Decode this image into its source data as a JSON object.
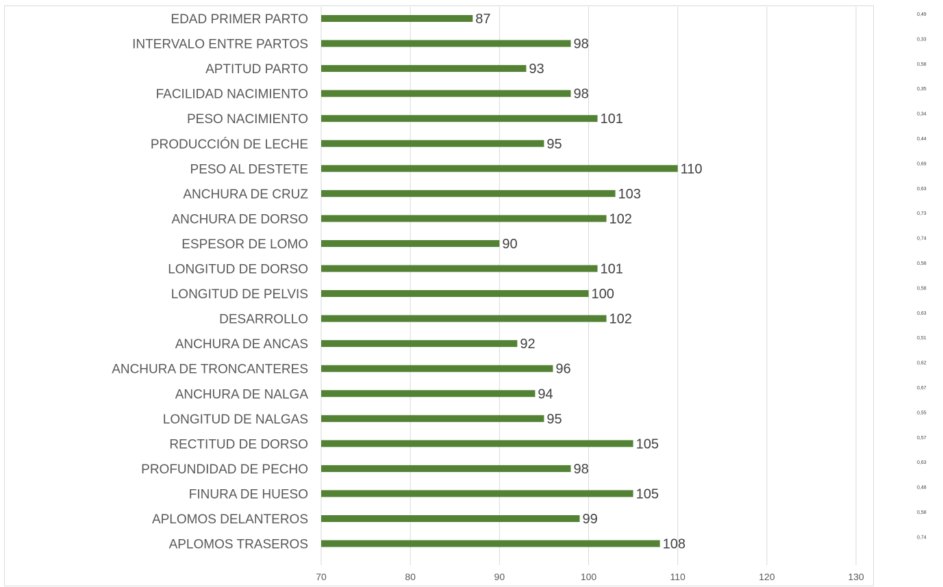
{
  "chart_data": {
    "type": "bar",
    "orientation": "horizontal",
    "title": "",
    "xlabel": "",
    "ylabel": "",
    "xlim": [
      70,
      130
    ],
    "xticks": [
      "70",
      "80",
      "90",
      "100",
      "110",
      "120",
      "130"
    ],
    "grid": "vertical",
    "legend": "none",
    "bar_color": "#548235",
    "categories": [
      "EDAD PRIMER PARTO",
      "INTERVALO ENTRE PARTOS",
      "APTITUD PARTO",
      "FACILIDAD NACIMIENTO",
      "PESO NACIMIENTO",
      "PRODUCCIÓN DE LECHE",
      "PESO AL DESTETE",
      "ANCHURA DE CRUZ",
      "ANCHURA DE DORSO",
      "ESPESOR DE LOMO",
      "LONGITUD DE DORSO",
      "LONGITUD DE PELVIS",
      "DESARROLLO",
      "ANCHURA DE ANCAS",
      "ANCHURA DE TRONCANTERES",
      "ANCHURA DE NALGA",
      "LONGITUD DE NALGAS",
      "RECTITUD DE DORSO",
      "PROFUNDIDAD DE PECHO",
      "FINURA DE HUESO",
      "APLOMOS DELANTEROS",
      "APLOMOS TRASEROS"
    ],
    "values": [
      87,
      98,
      93,
      98,
      101,
      95,
      110,
      103,
      102,
      90,
      101,
      100,
      102,
      92,
      96,
      94,
      95,
      105,
      98,
      105,
      99,
      108
    ],
    "side_values": [
      "0,49",
      "0,33",
      "0,58",
      "0,35",
      "0,34",
      "0,44",
      "0,69",
      "0,63",
      "0,73",
      "0,74",
      "0,58",
      "0,58",
      "0,63",
      "0,51",
      "0,62",
      "0,67",
      "0,55",
      "0,57",
      "0,63",
      "0,48",
      "0,58",
      "0,74"
    ]
  }
}
